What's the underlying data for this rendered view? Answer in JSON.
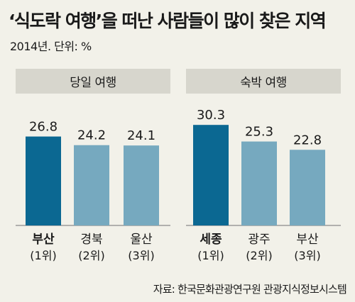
{
  "title": "‘식도락 여행’을 떠난 사람들이 많이 찾은 지역",
  "subtitle": "2014년. 단위: %",
  "source": "자료: 한국문화관광연구원 관광지식정보시스템",
  "colors": {
    "background": "#f2f1e9",
    "header_bg": "#d7d6cd",
    "bar_highlight": "#0b6892",
    "bar_normal": "#76a9bf",
    "axis": "#8a8a8a"
  },
  "chart_data": {
    "type": "bar",
    "groups": [
      {
        "header": "당일 여행",
        "categories": [
          "부산",
          "경북",
          "울산"
        ],
        "ranks": [
          "(1위)",
          "(2위)",
          "(3위)"
        ],
        "values": [
          26.8,
          24.2,
          24.1
        ],
        "highlight": [
          true,
          false,
          false
        ]
      },
      {
        "header": "숙박 여행",
        "categories": [
          "세종",
          "광주",
          "부산"
        ],
        "ranks": [
          "(1위)",
          "(2위)",
          "(3위)"
        ],
        "values": [
          30.3,
          25.3,
          22.8
        ],
        "highlight": [
          true,
          false,
          false
        ]
      }
    ],
    "unit": "%",
    "ylim": [
      0,
      31
    ],
    "grid": false,
    "legend": "none"
  }
}
